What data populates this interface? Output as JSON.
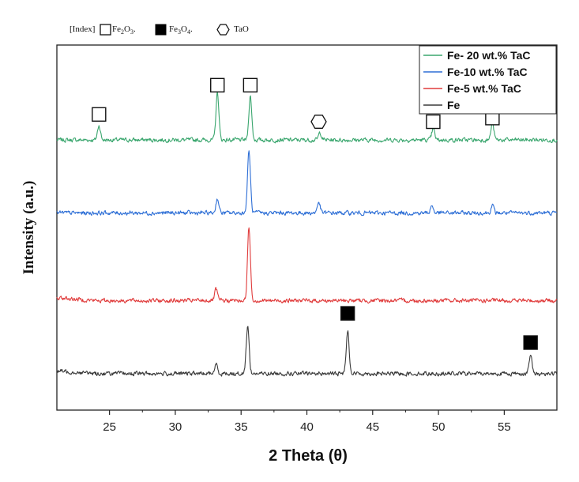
{
  "index_legend": {
    "prefix": "[Index]",
    "items": [
      {
        "symbol": "open-square",
        "formula_base": "Fe",
        "sub1": "2",
        "mid": "O",
        "sub2": "3",
        "tail": "."
      },
      {
        "symbol": "filled-square",
        "formula_base": "Fe",
        "sub1": "3",
        "mid": "O",
        "sub2": "4",
        "tail": "."
      },
      {
        "symbol": "open-hexagon",
        "label": "TaO"
      }
    ]
  },
  "chart_data": {
    "type": "line",
    "xlabel": "2 Theta (θ)",
    "ylabel": "Intensity (a.u.)",
    "xlim": [
      21,
      59
    ],
    "ylim": [
      0,
      100
    ],
    "xticks": [
      25,
      30,
      35,
      40,
      45,
      50,
      55
    ],
    "yticks_visible": false,
    "grid": false,
    "legend_position": "top-right",
    "series": [
      {
        "name": "Fe- 20 wt.% TaC",
        "color": "#3aa66e",
        "baseline": 74,
        "peaks": [
          [
            24.2,
            4
          ],
          [
            33.2,
            13
          ],
          [
            35.7,
            12
          ],
          [
            41.0,
            2
          ],
          [
            49.6,
            3
          ],
          [
            54.1,
            4.5
          ]
        ]
      },
      {
        "name": "Fe-10 wt.% TaC",
        "color": "#2e6fd6",
        "baseline": 54,
        "peaks": [
          [
            33.2,
            4
          ],
          [
            35.6,
            17
          ],
          [
            40.9,
            3
          ],
          [
            49.5,
            2
          ],
          [
            54.1,
            2
          ]
        ]
      },
      {
        "name": "Fe-5 wt.% TaC",
        "color": "#e03c3c",
        "baseline": 30,
        "peaks": [
          [
            33.1,
            3
          ],
          [
            35.6,
            20
          ]
        ]
      },
      {
        "name": "Fe",
        "color": "#3a3a3a",
        "baseline": 10,
        "peaks": [
          [
            33.1,
            2.5
          ],
          [
            35.5,
            13
          ],
          [
            43.1,
            12
          ],
          [
            57.0,
            5
          ]
        ]
      }
    ],
    "peak_markers": [
      {
        "x": 24.2,
        "y": 81,
        "phase": "Fe2O3",
        "symbol": "open-square"
      },
      {
        "x": 33.2,
        "y": 89,
        "phase": "Fe2O3",
        "symbol": "open-square"
      },
      {
        "x": 35.7,
        "y": 89,
        "phase": "Fe2O3",
        "symbol": "open-square"
      },
      {
        "x": 40.9,
        "y": 79,
        "phase": "TaO",
        "symbol": "open-hexagon"
      },
      {
        "x": 49.6,
        "y": 79,
        "phase": "Fe2O3",
        "symbol": "open-square"
      },
      {
        "x": 54.1,
        "y": 80,
        "phase": "Fe2O3",
        "symbol": "open-square"
      },
      {
        "x": 43.1,
        "y": 26.5,
        "phase": "Fe3O4",
        "symbol": "filled-square"
      },
      {
        "x": 57.0,
        "y": 18.5,
        "phase": "Fe3O4",
        "symbol": "filled-square"
      }
    ]
  }
}
